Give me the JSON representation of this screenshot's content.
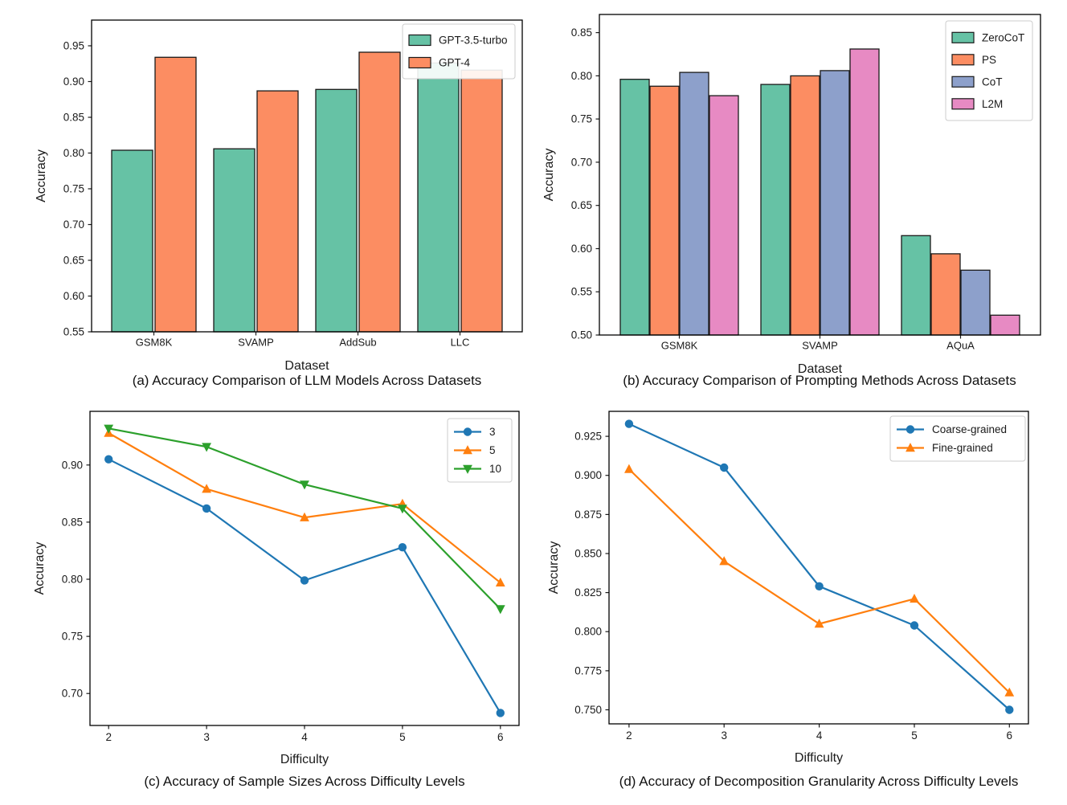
{
  "page": {
    "background": "#ffffff",
    "text_color": "#1a1a1a"
  },
  "chart_data": [
    {
      "id": "a",
      "type": "bar",
      "caption": "(a) Accuracy Comparison of LLM Models Across Datasets",
      "xlabel": "Dataset",
      "ylabel": "Accuracy",
      "categories": [
        "GSM8K",
        "SVAMP",
        "AddSub",
        "LLC"
      ],
      "series": [
        {
          "name": "GPT-3.5-turbo",
          "color": "#66c2a5",
          "values": [
            0.804,
            0.806,
            0.889,
            0.926
          ]
        },
        {
          "name": "GPT-4",
          "color": "#fc8d62",
          "values": [
            0.934,
            0.887,
            0.941,
            0.916
          ]
        }
      ],
      "ylim": [
        0.55,
        0.986
      ],
      "yticks": [
        "0.55",
        "0.60",
        "0.65",
        "0.70",
        "0.75",
        "0.80",
        "0.85",
        "0.90",
        "0.95"
      ],
      "legend_position": "upper right",
      "grid": false,
      "bar_edge_color": "#1a1a1a"
    },
    {
      "id": "b",
      "type": "bar",
      "caption": "(b) Accuracy Comparison of Prompting Methods Across Datasets",
      "xlabel": "Dataset",
      "ylabel": "Accuracy",
      "categories": [
        "GSM8K",
        "SVAMP",
        "AQuA"
      ],
      "series": [
        {
          "name": "ZeroCoT",
          "color": "#66c2a5",
          "values": [
            0.796,
            0.79,
            0.615
          ]
        },
        {
          "name": "PS",
          "color": "#fc8d62",
          "values": [
            0.788,
            0.8,
            0.594
          ]
        },
        {
          "name": "CoT",
          "color": "#8da0cb",
          "values": [
            0.804,
            0.806,
            0.575
          ]
        },
        {
          "name": "L2M",
          "color": "#e78ac3",
          "values": [
            0.777,
            0.831,
            0.523
          ]
        }
      ],
      "ylim": [
        0.5,
        0.871
      ],
      "yticks": [
        "0.50",
        "0.55",
        "0.60",
        "0.65",
        "0.70",
        "0.75",
        "0.80",
        "0.85"
      ],
      "legend_position": "upper right",
      "grid": false,
      "bar_edge_color": "#1a1a1a"
    },
    {
      "id": "c",
      "type": "line",
      "caption": "(c) Accuracy of Sample Sizes Across Difficulty Levels",
      "xlabel": "Difficulty",
      "ylabel": "Accuracy",
      "x": [
        2,
        3,
        4,
        5,
        6
      ],
      "xticks": [
        "2",
        "3",
        "4",
        "5",
        "6"
      ],
      "series": [
        {
          "name": "3",
          "color": "#1f77b4",
          "marker": "circle",
          "values": [
            0.905,
            0.862,
            0.799,
            0.828,
            0.683
          ]
        },
        {
          "name": "5",
          "color": "#ff7f0e",
          "marker": "triangle-up",
          "values": [
            0.928,
            0.879,
            0.854,
            0.866,
            0.797
          ]
        },
        {
          "name": "10",
          "color": "#2ca02c",
          "marker": "triangle-down",
          "values": [
            0.932,
            0.916,
            0.883,
            0.862,
            0.774
          ]
        }
      ],
      "xlim": [
        1.81,
        6.19
      ],
      "ylim": [
        0.672,
        0.947
      ],
      "yticks": [
        "0.70",
        "0.75",
        "0.80",
        "0.85",
        "0.90"
      ],
      "legend_position": "upper right",
      "grid": false
    },
    {
      "id": "d",
      "type": "line",
      "caption": "(d) Accuracy of Decomposition Granularity Across Difficulty Levels",
      "xlabel": "Difficulty",
      "ylabel": "Accuracy",
      "x": [
        2,
        3,
        4,
        5,
        6
      ],
      "xticks": [
        "2",
        "3",
        "4",
        "5",
        "6"
      ],
      "series": [
        {
          "name": "Coarse-grained",
          "color": "#1f77b4",
          "marker": "circle",
          "values": [
            0.933,
            0.905,
            0.829,
            0.804,
            0.75
          ]
        },
        {
          "name": "Fine-grained",
          "color": "#ff7f0e",
          "marker": "triangle-up",
          "values": [
            0.904,
            0.845,
            0.805,
            0.821,
            0.761
          ]
        }
      ],
      "xlim": [
        1.79,
        6.2
      ],
      "ylim": [
        0.741,
        0.941
      ],
      "yticks": [
        "0.750",
        "0.775",
        "0.800",
        "0.825",
        "0.850",
        "0.875",
        "0.900",
        "0.925"
      ],
      "legend_position": "upper right",
      "grid": false
    }
  ]
}
